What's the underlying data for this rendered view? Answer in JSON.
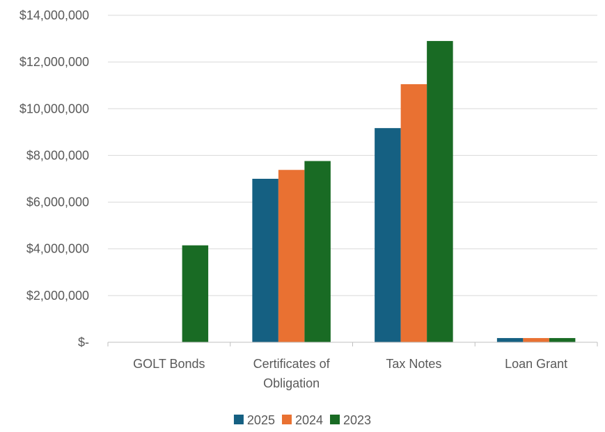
{
  "chart_data": {
    "type": "bar",
    "categories": [
      [
        "GOLT Bonds"
      ],
      [
        "Certificates of",
        "Obligation"
      ],
      [
        "Tax Notes"
      ],
      [
        "Loan Grant"
      ]
    ],
    "series": [
      {
        "name": "2025",
        "color": "#156082",
        "values": [
          0,
          7000000,
          9170000,
          180000
        ]
      },
      {
        "name": "2024",
        "color": "#E97132",
        "values": [
          0,
          7380000,
          11050000,
          180000
        ]
      },
      {
        "name": "2023",
        "color": "#196B24",
        "values": [
          4150000,
          7760000,
          12900000,
          180000
        ]
      }
    ],
    "ylim": [
      0,
      14000000
    ],
    "yticks": [
      0,
      2000000,
      4000000,
      6000000,
      8000000,
      10000000,
      12000000,
      14000000
    ],
    "ytick_labels": [
      "$-",
      "$2,000,000",
      "$4,000,000",
      "$6,000,000",
      "$8,000,000",
      "$10,000,000",
      "$12,000,000",
      "$14,000,000"
    ],
    "grid": true,
    "legend_position": "bottom",
    "title": "",
    "xlabel": "",
    "ylabel": ""
  }
}
